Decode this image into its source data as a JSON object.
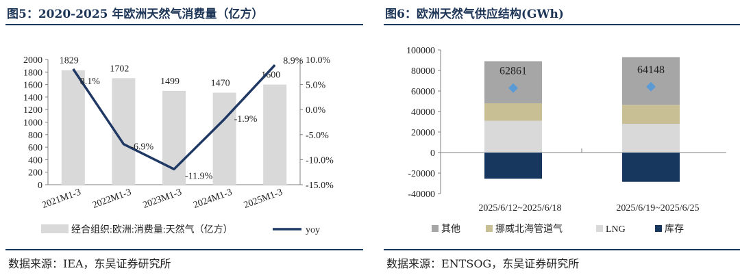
{
  "left": {
    "title": "图5：2020-2025 年欧洲天然气消费量（亿方）",
    "source": "数据来源：IEA，东吴证券研究所",
    "chart_data": {
      "type": "bar",
      "categories": [
        "2021M1-3",
        "2022M1-3",
        "2023M1-3",
        "2024M1-3",
        "2025M1-3"
      ],
      "series": [
        {
          "name": "经合组织:欧洲:消费量:天然气（亿方）",
          "type": "bar",
          "axis": "left",
          "values": [
            1829,
            1702,
            1499,
            1470,
            1600
          ],
          "color": "#d9d9d9"
        },
        {
          "name": "yoy",
          "type": "line",
          "axis": "right",
          "values": [
            8.1,
            -6.9,
            -11.9,
            -1.9,
            8.9
          ],
          "color": "#1f3864"
        }
      ],
      "value_labels": [
        "1829",
        "1702",
        "1499",
        "1470",
        "1600"
      ],
      "yoy_labels": [
        "8.1%",
        "-6.9%",
        "-11.9%",
        "-1.9%",
        "8.9%"
      ],
      "ylim_left": [
        0,
        2000
      ],
      "yticks_left": [
        "0",
        "200",
        "400",
        "600",
        "800",
        "1000",
        "1200",
        "1400",
        "1600",
        "1800",
        "2000"
      ],
      "ylim_right": [
        -15,
        10
      ],
      "yticks_right": [
        "-15.0%",
        "-10.0%",
        "-5.0%",
        "0.0%",
        "5.0%",
        "10.0%"
      ],
      "legend_position": "bottom",
      "grid": false
    }
  },
  "right": {
    "title": "图6：欧洲天然气供应结构(GWh)",
    "source": "数据来源：ENTSOG，东吴证券研究所",
    "chart_data": {
      "type": "bar",
      "stacked": true,
      "categories": [
        "2025/6/12~2025/6/18",
        "2025/6/19~2025/6/25"
      ],
      "series": [
        {
          "name": "LNG",
          "values": [
            31000,
            28000
          ],
          "color": "#d9d9d9"
        },
        {
          "name": "挪威北海管道气",
          "values": [
            17000,
            18500
          ],
          "color": "#c9bf95"
        },
        {
          "name": "其他",
          "values": [
            41000,
            46500
          ],
          "color": "#a6a6a6"
        },
        {
          "name": "库存",
          "values": [
            -25500,
            -28500
          ],
          "color": "#17375e"
        }
      ],
      "totals": [
        62861,
        64148
      ],
      "total_labels": [
        "62861",
        "64148"
      ],
      "total_marker_color": "#5b9bd5",
      "legend_order": [
        "其他",
        "挪威北海管道气",
        "LNG",
        "库存"
      ],
      "ylim": [
        -40000,
        100000
      ],
      "yticks": [
        "-40000",
        "-20000",
        "0",
        "20000",
        "40000",
        "60000",
        "80000",
        "100000"
      ],
      "legend_position": "bottom",
      "grid": false
    }
  }
}
